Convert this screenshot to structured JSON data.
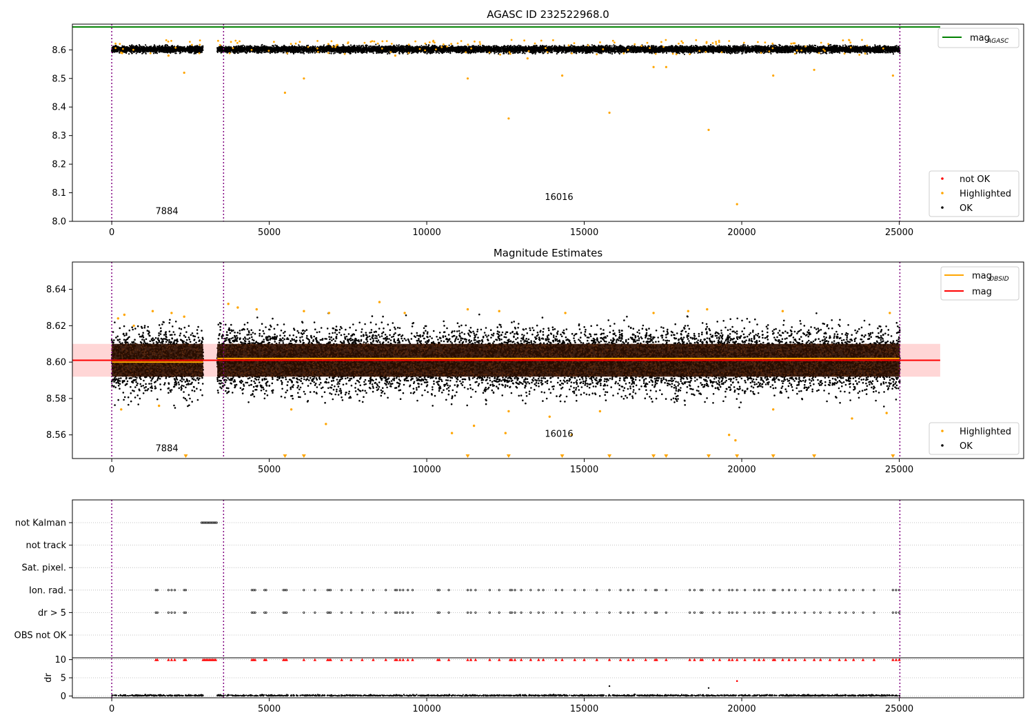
{
  "figure": {
    "title": "AGASC ID 232522968.0"
  },
  "chart_data": [
    {
      "type": "scatter",
      "title": "AGASC ID 232522968.0",
      "xlim": [
        -1250,
        28950
      ],
      "ylim": [
        8.0,
        8.69
      ],
      "x_ticks": [
        "0",
        "5000",
        "10000",
        "15000",
        "20000",
        "25000"
      ],
      "x_tick_values": [
        0,
        5000,
        10000,
        15000,
        20000,
        25000
      ],
      "y_ticks": [
        "8.0",
        "8.1",
        "8.2",
        "8.3",
        "8.4",
        "8.5",
        "8.6"
      ],
      "y_tick_values": [
        8.0,
        8.1,
        8.2,
        8.3,
        8.4,
        8.5,
        8.6
      ],
      "grid": false,
      "mag_agasc_line": {
        "y": 8.68,
        "x_range": [
          -1250,
          26300
        ],
        "color": "#008000"
      },
      "obsid_boundaries": [
        0,
        3550,
        25020
      ],
      "obsid_labels": [
        {
          "text": "7884",
          "x": 1750,
          "y": 8.025
        },
        {
          "text": "16016",
          "x": 14200,
          "y": 8.075
        }
      ],
      "ok_band": {
        "x_ranges": [
          [
            0,
            2900
          ],
          [
            3350,
            25020
          ]
        ],
        "center": 8.602,
        "spread": 0.012
      },
      "highlighted_points": [
        [
          2300,
          8.52
        ],
        [
          5500,
          8.45
        ],
        [
          6100,
          8.5
        ],
        [
          11300,
          8.5
        ],
        [
          12600,
          8.36
        ],
        [
          14300,
          8.51
        ],
        [
          15800,
          8.38
        ],
        [
          17200,
          8.54
        ],
        [
          17600,
          8.54
        ],
        [
          18950,
          8.32
        ],
        [
          19850,
          8.06
        ],
        [
          21000,
          8.51
        ],
        [
          22300,
          8.53
        ],
        [
          24800,
          8.51
        ],
        [
          300,
          8.59
        ],
        [
          1800,
          8.58
        ],
        [
          9000,
          8.58
        ],
        [
          13200,
          8.57
        ]
      ],
      "legend_lines": [
        {
          "label": "mag",
          "sub": "AGASC",
          "color": "#008000"
        }
      ],
      "legend_markers": [
        {
          "label": "not OK",
          "color": "#ff0000"
        },
        {
          "label": "Highlighted",
          "color": "#ffa500"
        },
        {
          "label": "OK",
          "color": "#000000"
        }
      ],
      "line_legend_position": "upper right",
      "marker_legend_position": "lower right"
    },
    {
      "type": "scatter",
      "title": "Magnitude Estimates",
      "xlim": [
        -1250,
        28950
      ],
      "ylim": [
        8.547,
        8.655
      ],
      "x_ticks": [
        "0",
        "5000",
        "10000",
        "15000",
        "20000",
        "25000"
      ],
      "x_tick_values": [
        0,
        5000,
        10000,
        15000,
        20000,
        25000
      ],
      "y_ticks": [
        "8.56",
        "8.58",
        "8.60",
        "8.62",
        "8.64"
      ],
      "y_tick_values": [
        8.56,
        8.58,
        8.6,
        8.62,
        8.64
      ],
      "grid": false,
      "mag_line": {
        "y": 8.601,
        "x_range": [
          -1250,
          26300
        ],
        "color": "#ff0000"
      },
      "mag_band": {
        "low": 8.592,
        "high": 8.61,
        "color": "#ffd6d6"
      },
      "mag_obsid_segments": [
        {
          "x_range": [
            0,
            2900
          ],
          "y": 8.6
        },
        {
          "x_range": [
            3350,
            25020
          ],
          "y": 8.602
        }
      ],
      "obsid_boundaries": [
        0,
        3550,
        25020
      ],
      "obsid_labels": [
        {
          "text": "7884",
          "x": 1750,
          "y": 8.551
        },
        {
          "text": "16016",
          "x": 14200,
          "y": 8.559
        }
      ],
      "ok_band": {
        "x_ranges": [
          [
            0,
            2900
          ],
          [
            3350,
            25020
          ]
        ],
        "center": 8.601,
        "spread": 0.012
      },
      "highlighted_points": [
        [
          200,
          8.624
        ],
        [
          400,
          8.626
        ],
        [
          700,
          8.62
        ],
        [
          1300,
          8.628
        ],
        [
          1900,
          8.627
        ],
        [
          2300,
          8.625
        ],
        [
          3700,
          8.632
        ],
        [
          4000,
          8.63
        ],
        [
          4600,
          8.629
        ],
        [
          6100,
          8.628
        ],
        [
          6900,
          8.627
        ],
        [
          8500,
          8.633
        ],
        [
          9300,
          8.627
        ],
        [
          11300,
          8.629
        ],
        [
          12300,
          8.628
        ],
        [
          14400,
          8.627
        ],
        [
          17200,
          8.627
        ],
        [
          18300,
          8.628
        ],
        [
          18900,
          8.629
        ],
        [
          21300,
          8.628
        ],
        [
          24700,
          8.627
        ],
        [
          300,
          8.574
        ],
        [
          1500,
          8.576
        ],
        [
          5700,
          8.574
        ],
        [
          6800,
          8.566
        ],
        [
          10800,
          8.561
        ],
        [
          11500,
          8.565
        ],
        [
          12500,
          8.561
        ],
        [
          12600,
          8.573
        ],
        [
          13900,
          8.57
        ],
        [
          14600,
          8.56
        ],
        [
          15500,
          8.573
        ],
        [
          19800,
          8.557
        ],
        [
          19600,
          8.56
        ],
        [
          21000,
          8.574
        ],
        [
          23500,
          8.569
        ],
        [
          24600,
          8.572
        ]
      ],
      "below_range_markers": [
        2350,
        5500,
        6100,
        11300,
        12600,
        14300,
        15800,
        17200,
        17600,
        18950,
        19850,
        21000,
        22300,
        24800
      ],
      "legend_lines": [
        {
          "label": "mag",
          "sub": "OBSID",
          "color": "#ffa500"
        },
        {
          "label": "mag",
          "sub": "",
          "color": "#ff0000"
        }
      ],
      "legend_markers": [
        {
          "label": "Highlighted",
          "color": "#ffa500"
        },
        {
          "label": "OK",
          "color": "#000000"
        }
      ],
      "line_legend_position": "upper right",
      "marker_legend_position": "lower right"
    },
    {
      "type": "scatter",
      "title": "",
      "xlim": [
        -1250,
        28950
      ],
      "categories": [
        "not Kalman",
        "not track",
        "Sat. pixel.",
        "Ion. rad.",
        "dr > 5",
        "OBS not OK"
      ],
      "flags": {
        "not Kalman": [
          [
            2850,
            3350
          ]
        ],
        "Ion. rad.": "events",
        "dr > 5": "events"
      },
      "flag_event_x": [
        1400,
        1450,
        1800,
        1900,
        2000,
        2300,
        2350,
        4450,
        4500,
        4550,
        4850,
        4900,
        5450,
        5500,
        5550,
        6100,
        6450,
        6850,
        6900,
        6950,
        7300,
        7600,
        7950,
        8300,
        8700,
        9000,
        9050,
        9150,
        9250,
        9400,
        9550,
        10350,
        10400,
        10700,
        11300,
        11400,
        11550,
        12000,
        12300,
        12650,
        12700,
        12800,
        13000,
        13300,
        13550,
        13700,
        14100,
        14300,
        14700,
        15000,
        15400,
        15800,
        16150,
        16400,
        16550,
        16950,
        17250,
        17300,
        17600,
        18350,
        18500,
        18700,
        18750,
        19100,
        19300,
        19600,
        19700,
        19850,
        20100,
        20400,
        20550,
        20700,
        21000,
        21050,
        21300,
        21500,
        21700,
        22000,
        22300,
        22500,
        22800,
        23100,
        23300,
        23550,
        23850,
        24200,
        24800,
        24900,
        25000
      ],
      "dr_axis": {
        "label": "dr",
        "ylim": [
          -0.5,
          10.5
        ],
        "y_ticks": [
          "0",
          "5",
          "10"
        ],
        "y_tick_values": [
          0,
          5,
          10
        ],
        "clip_value": 10
      },
      "dr_outliers": [
        [
          15800,
          2.7
        ],
        [
          18950,
          2.2
        ],
        [
          19850,
          4.1
        ]
      ],
      "x_ticks": [
        "0",
        "5000",
        "10000",
        "15000",
        "20000",
        "25000"
      ],
      "x_tick_values": [
        0,
        5000,
        10000,
        15000,
        20000,
        25000
      ],
      "obsid_boundaries": [
        0,
        3550,
        25020
      ],
      "grid": true
    }
  ]
}
